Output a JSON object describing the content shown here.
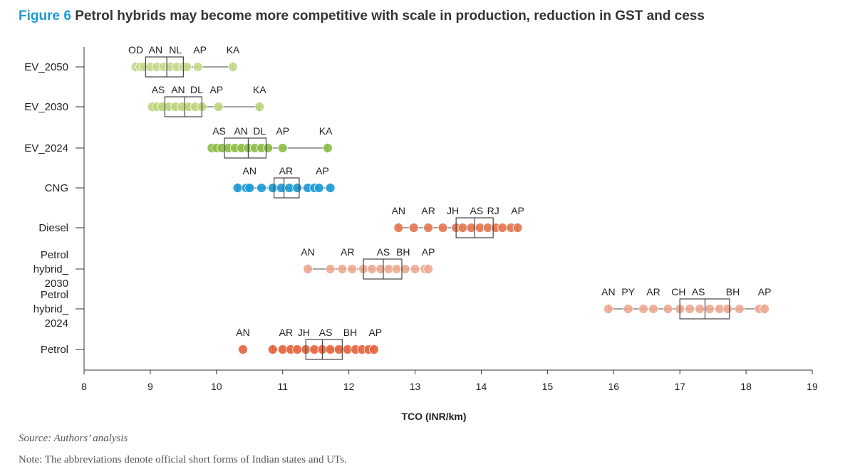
{
  "title": {
    "figure_label": "Figure 6",
    "text": "Petrol hybrids may become more competitive with scale in production, reduction in GST and cess"
  },
  "source": "Source: Authors’ analysis",
  "note": "Note: The abbreviations denote official short forms of Indian states and UTs.",
  "chart_data": {
    "type": "box_strip",
    "xlabel": "TCO (INR/km)",
    "xlim": [
      8,
      19
    ],
    "xticks": [
      8,
      9,
      10,
      11,
      12,
      13,
      14,
      15,
      16,
      17,
      18,
      19
    ],
    "series": [
      {
        "category": [
          "EV_2050"
        ],
        "color": "#c5d98b",
        "box": {
          "q1": 8.93,
          "median": 9.25,
          "q3": 9.5,
          "min": 8.78,
          "max": 10.25
        },
        "points": [
          8.78,
          8.85,
          8.9,
          9.0,
          9.1,
          9.2,
          9.3,
          9.4,
          9.5,
          9.55,
          9.72,
          10.25
        ],
        "labels": [
          {
            "text": "OD",
            "x": 8.78
          },
          {
            "text": "AN",
            "x": 9.08
          },
          {
            "text": "NL",
            "x": 9.38
          },
          {
            "text": "AP",
            "x": 9.75
          },
          {
            "text": "KA",
            "x": 10.25
          }
        ]
      },
      {
        "category": [
          "EV_2030"
        ],
        "color": "#bcd57c",
        "box": {
          "q1": 9.22,
          "median": 9.52,
          "q3": 9.78,
          "min": 9.03,
          "max": 10.65
        },
        "points": [
          9.03,
          9.1,
          9.18,
          9.28,
          9.38,
          9.48,
          9.58,
          9.68,
          9.78,
          10.03,
          10.65
        ],
        "labels": [
          {
            "text": "AS",
            "x": 9.12
          },
          {
            "text": "AN",
            "x": 9.42
          },
          {
            "text": "DL",
            "x": 9.7
          },
          {
            "text": "AP",
            "x": 10.0
          },
          {
            "text": "KA",
            "x": 10.65
          }
        ]
      },
      {
        "category": [
          "EV_2024"
        ],
        "color": "#8cbd45",
        "box": {
          "q1": 10.12,
          "median": 10.48,
          "q3": 10.75,
          "min": 9.93,
          "max": 11.68
        },
        "points": [
          9.93,
          10.0,
          10.08,
          10.18,
          10.28,
          10.38,
          10.48,
          10.58,
          10.68,
          10.78,
          11.0,
          11.68
        ],
        "labels": [
          {
            "text": "AS",
            "x": 10.04
          },
          {
            "text": "AN",
            "x": 10.37
          },
          {
            "text": "DL",
            "x": 10.65
          },
          {
            "text": "AP",
            "x": 11.0
          },
          {
            "text": "KA",
            "x": 11.65
          }
        ]
      },
      {
        "category": [
          "CNG"
        ],
        "color": "#1a9ad6",
        "box": {
          "q1": 10.87,
          "median": 11.02,
          "q3": 11.25,
          "min": 10.32,
          "max": 11.72
        },
        "points": [
          10.32,
          10.45,
          10.5,
          10.68,
          10.85,
          10.98,
          11.1,
          11.22,
          11.38,
          11.48,
          11.55,
          11.72
        ],
        "labels": [
          {
            "text": "AN",
            "x": 10.5
          },
          {
            "text": "AR",
            "x": 11.05
          },
          {
            "text": "AP",
            "x": 11.6
          }
        ]
      },
      {
        "category": [
          "Diesel"
        ],
        "color": "#e4774f",
        "box": {
          "q1": 13.62,
          "median": 13.9,
          "q3": 14.18,
          "min": 12.75,
          "max": 14.55
        },
        "points": [
          12.75,
          12.98,
          13.2,
          13.42,
          13.62,
          13.72,
          13.85,
          13.98,
          14.1,
          14.22,
          14.32,
          14.45,
          14.55
        ],
        "labels": [
          {
            "text": "AN",
            "x": 12.75
          },
          {
            "text": "AR",
            "x": 13.2
          },
          {
            "text": "JH",
            "x": 13.57
          },
          {
            "text": "AS",
            "x": 13.93
          },
          {
            "text": "RJ",
            "x": 14.18
          },
          {
            "text": "AP",
            "x": 14.55
          }
        ]
      },
      {
        "category": [
          "Petrol",
          "hybrid_",
          "2030"
        ],
        "color": "#eeaa90",
        "box": {
          "q1": 12.22,
          "median": 12.52,
          "q3": 12.8,
          "min": 11.38,
          "max": 13.2
        },
        "points": [
          11.38,
          11.72,
          11.9,
          12.05,
          12.22,
          12.35,
          12.48,
          12.6,
          12.72,
          12.85,
          13.0,
          13.15,
          13.2
        ],
        "labels": [
          {
            "text": "AN",
            "x": 11.38
          },
          {
            "text": "AR",
            "x": 11.98
          },
          {
            "text": "AS",
            "x": 12.52
          },
          {
            "text": "BH",
            "x": 12.82
          },
          {
            "text": "AP",
            "x": 13.2
          }
        ]
      },
      {
        "category": [
          "Petrol",
          "hybrid_",
          "2024"
        ],
        "color": "#eeaa90",
        "box": {
          "q1": 17.0,
          "median": 17.38,
          "q3": 17.75,
          "min": 15.92,
          "max": 18.28
        },
        "points": [
          15.92,
          16.22,
          16.45,
          16.6,
          16.82,
          17.0,
          17.15,
          17.3,
          17.45,
          17.6,
          17.72,
          17.9,
          18.2,
          18.28
        ],
        "labels": [
          {
            "text": "AN",
            "x": 15.92
          },
          {
            "text": "PY",
            "x": 16.22
          },
          {
            "text": "AR",
            "x": 16.6
          },
          {
            "text": "CH",
            "x": 16.98
          },
          {
            "text": "AS",
            "x": 17.28
          },
          {
            "text": "BH",
            "x": 17.8
          },
          {
            "text": "AP",
            "x": 18.28
          }
        ]
      },
      {
        "category": [
          "Petrol"
        ],
        "color": "#e6633a",
        "box": {
          "q1": 11.35,
          "median": 11.6,
          "q3": 11.9,
          "min": 10.85,
          "max": 12.38
        },
        "points": [
          10.4,
          10.85,
          11.0,
          11.12,
          11.22,
          11.35,
          11.48,
          11.6,
          11.72,
          11.85,
          11.98,
          12.1,
          12.2,
          12.3,
          12.38
        ],
        "labels": [
          {
            "text": "AN",
            "x": 10.4
          },
          {
            "text": "AR",
            "x": 11.05
          },
          {
            "text": "JH",
            "x": 11.32
          },
          {
            "text": "AS",
            "x": 11.65
          },
          {
            "text": "BH",
            "x": 12.02
          },
          {
            "text": "AP",
            "x": 12.4
          }
        ]
      }
    ]
  }
}
